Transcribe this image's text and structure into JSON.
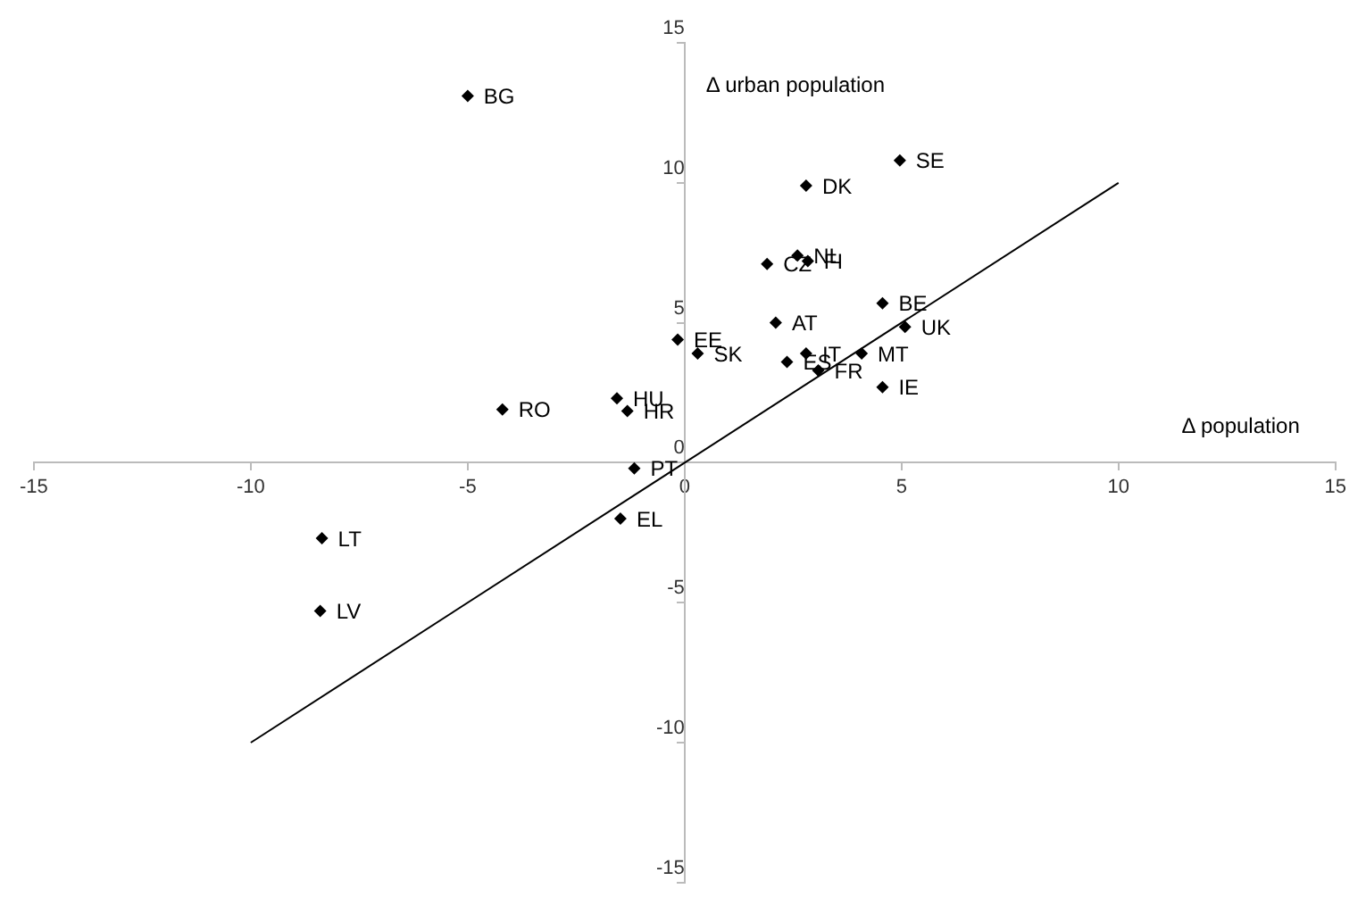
{
  "chart_data": {
    "type": "scatter",
    "xlabel": "Δ population",
    "ylabel": "Δ urban population",
    "xlim": [
      -15,
      15
    ],
    "ylim": [
      -15,
      15
    ],
    "xticks": [
      -15,
      -10,
      -5,
      0,
      5,
      10,
      15
    ],
    "yticks": [
      -15,
      -10,
      -5,
      0,
      5,
      10,
      15
    ],
    "grid": false,
    "legend": false,
    "marker": "diamond",
    "series": [
      {
        "color": "#000000",
        "x": [
          -5.0,
          4.96,
          2.8,
          2.6,
          2.84,
          1.9,
          4.56,
          2.1,
          5.08,
          -0.16,
          0.3,
          2.8,
          2.36,
          3.08,
          4.08,
          4.56,
          -1.56,
          -1.32,
          -4.2,
          -1.16,
          -1.48,
          -8.36,
          -8.4
        ],
        "values": [
          13.1,
          10.8,
          9.9,
          7.4,
          7.2,
          7.1,
          5.7,
          5.0,
          4.85,
          4.4,
          3.9,
          3.9,
          3.6,
          3.3,
          3.9,
          2.7,
          2.3,
          1.85,
          1.9,
          -0.2,
          -2.0,
          -2.7,
          -5.3
        ]
      },
      {
        "type": "line",
        "color": "#000000",
        "marker": "none",
        "x": [
          -10,
          10
        ],
        "values": [
          -10,
          10
        ]
      }
    ],
    "annotations": [
      {
        "text": "BG",
        "x": -5.0,
        "y": 13.1
      },
      {
        "text": "SE",
        "x": 4.96,
        "y": 10.8
      },
      {
        "text": "DK",
        "x": 2.8,
        "y": 9.9
      },
      {
        "text": "NL",
        "x": 2.6,
        "y": 7.4
      },
      {
        "text": "FI",
        "x": 2.84,
        "y": 7.2
      },
      {
        "text": "CZ",
        "x": 1.9,
        "y": 7.1
      },
      {
        "text": "BE",
        "x": 4.56,
        "y": 5.7
      },
      {
        "text": "AT",
        "x": 2.1,
        "y": 5.0
      },
      {
        "text": "UK",
        "x": 5.08,
        "y": 4.85
      },
      {
        "text": "EE",
        "x": -0.16,
        "y": 4.4
      },
      {
        "text": "SK",
        "x": 0.3,
        "y": 3.9
      },
      {
        "text": "IT",
        "x": 2.8,
        "y": 3.9
      },
      {
        "text": "ES",
        "x": 2.36,
        "y": 3.6
      },
      {
        "text": "FR",
        "x": 3.08,
        "y": 3.3
      },
      {
        "text": "MT",
        "x": 4.08,
        "y": 3.9
      },
      {
        "text": "IE",
        "x": 4.56,
        "y": 2.7
      },
      {
        "text": "HU",
        "x": -1.56,
        "y": 2.3
      },
      {
        "text": "HR",
        "x": -1.32,
        "y": 1.85
      },
      {
        "text": "RO",
        "x": -4.2,
        "y": 1.9
      },
      {
        "text": "PT",
        "x": -1.16,
        "y": -0.2
      },
      {
        "text": "EL",
        "x": -1.48,
        "y": -2.0
      },
      {
        "text": "LT",
        "x": -8.36,
        "y": -2.7
      },
      {
        "text": "LV",
        "x": -8.4,
        "y": -5.3
      }
    ]
  }
}
